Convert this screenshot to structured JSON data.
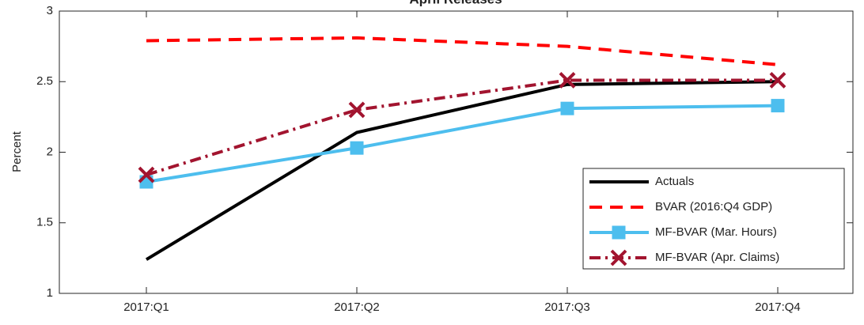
{
  "chart_data": {
    "type": "line",
    "title": "April Releases",
    "y_label": "Percent",
    "categories": [
      "2017:Q1",
      "2017:Q2",
      "2017:Q3",
      "2017:Q4"
    ],
    "series": [
      {
        "name": "Actuals",
        "color": "#000000",
        "values": [
          1.24,
          2.14,
          2.48,
          2.5
        ]
      },
      {
        "name": "BVAR (2016:Q4 GDP)",
        "color": "#ff0000",
        "values": [
          2.79,
          2.81,
          2.75,
          2.62
        ]
      },
      {
        "name": "MF-BVAR (Mar. Hours)",
        "color": "#4dbeee",
        "values": [
          1.79,
          2.03,
          2.31,
          2.33
        ]
      },
      {
        "name": "MF-BVAR (Apr. Claims)",
        "color": "#a2142f",
        "values": [
          1.84,
          2.3,
          2.51,
          2.51
        ]
      }
    ],
    "ylim": [
      1,
      3
    ],
    "yticks": [
      1,
      1.5,
      2,
      2.5,
      3
    ],
    "grid": false,
    "legend": "lower right"
  }
}
